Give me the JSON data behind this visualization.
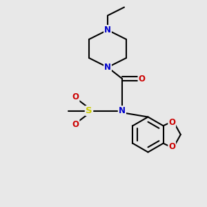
{
  "background_color": "#e8e8e8",
  "bond_color": "#000000",
  "N_color": "#0000cc",
  "O_color": "#cc0000",
  "S_color": "#cccc00",
  "font_size": 8.5,
  "lw": 1.5,
  "fig_width": 3.0,
  "fig_height": 3.0,
  "xlim": [
    0,
    10
  ],
  "ylim": [
    0,
    10
  ]
}
